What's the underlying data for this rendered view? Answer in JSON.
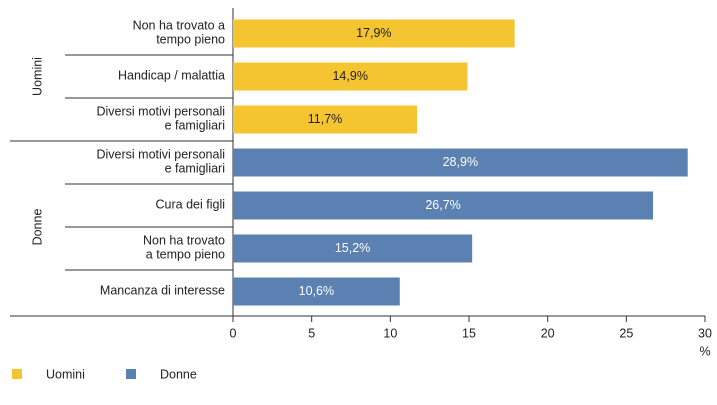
{
  "chart_data": {
    "type": "hbar",
    "series": [
      {
        "name": "Uomini",
        "color": "#f4c431",
        "categories": [
          "Non ha trovato a\ntempo pieno",
          "Handicap / malattia",
          "Diversi motivi personali\ne famigliari"
        ],
        "values": [
          17.9,
          14.9,
          11.7
        ],
        "value_labels": [
          "17,9%",
          "14,9%",
          "11,7%"
        ]
      },
      {
        "name": "Donne",
        "color": "#5b80b2",
        "categories": [
          "Diversi motivi personali\ne famigliari",
          "Cura dei figli",
          "Non ha trovato\na tempo pieno",
          "Mancanza di interesse"
        ],
        "values": [
          28.9,
          26.7,
          15.2,
          10.6
        ],
        "value_labels": [
          "28,9%",
          "26,7%",
          "15,2%",
          "10,6%"
        ]
      }
    ],
    "xlim": [
      0,
      30
    ],
    "xticks": [
      0,
      5,
      10,
      15,
      20,
      25,
      30
    ],
    "x_unit": "%"
  }
}
